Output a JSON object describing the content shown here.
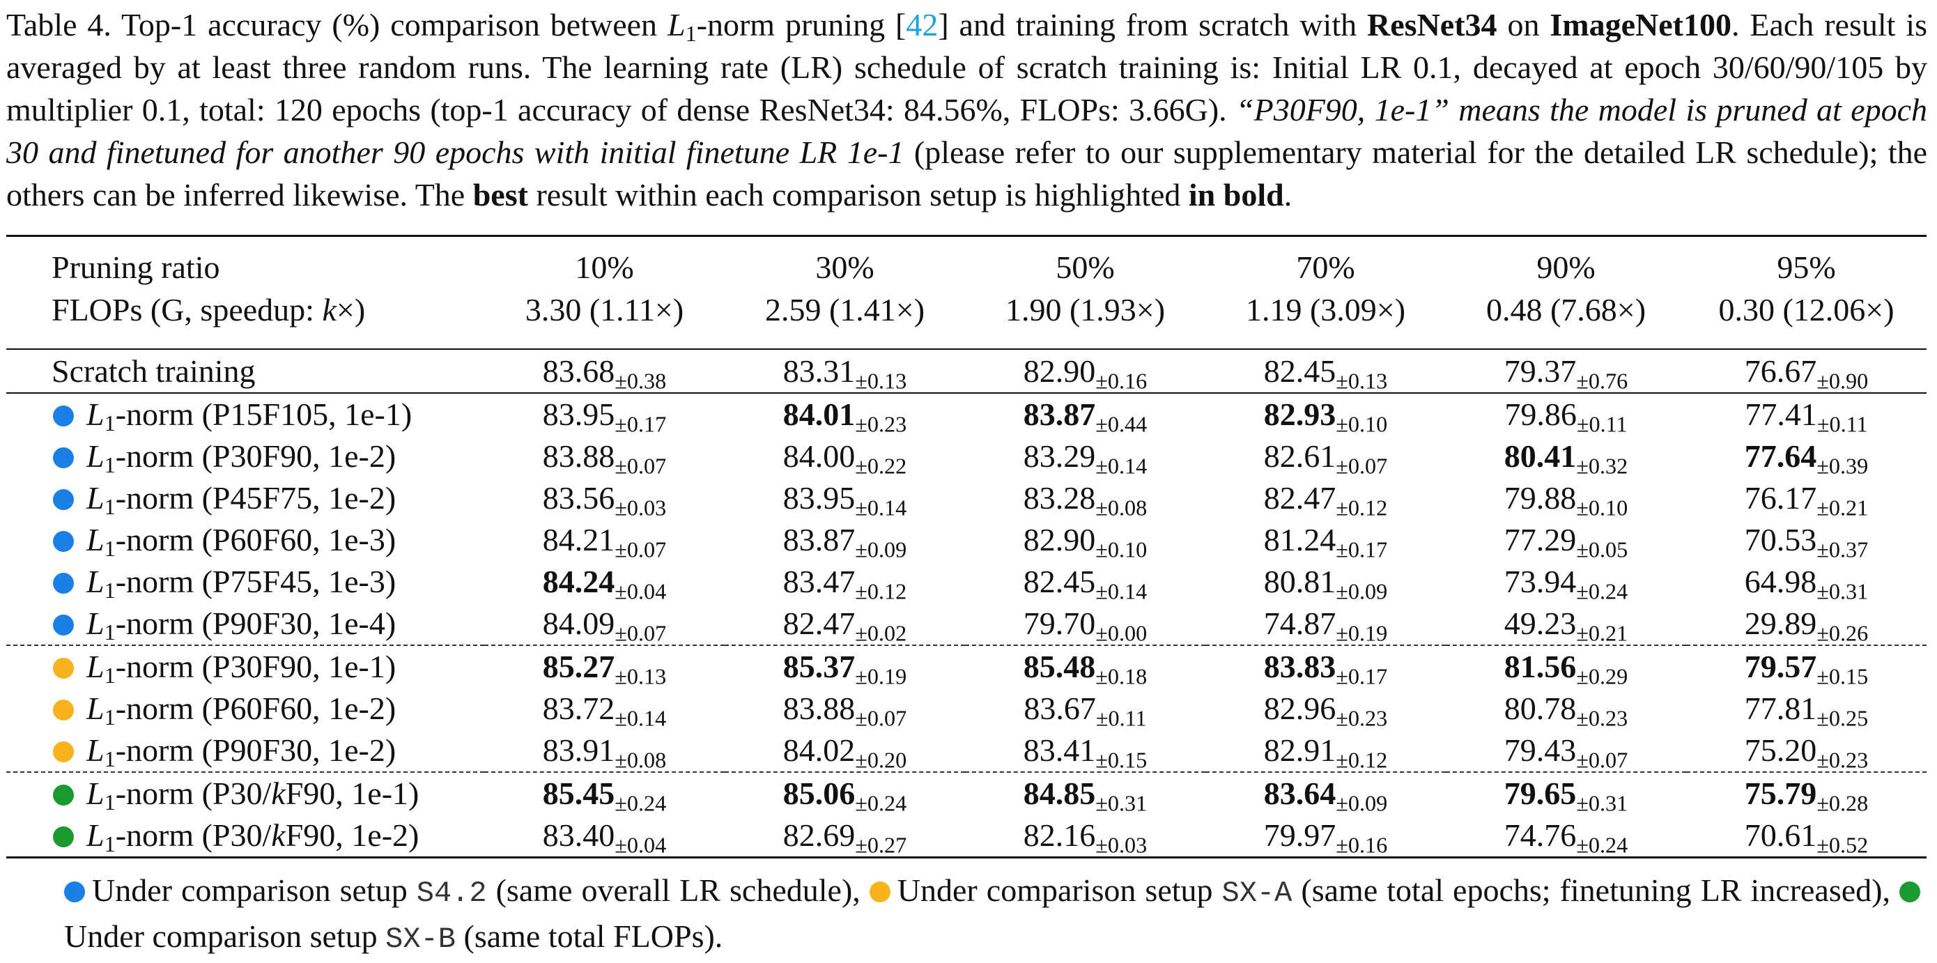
{
  "caption": {
    "parts": [
      "Table 4. Top-1 accuracy (%) comparison between ",
      "L",
      "1",
      "-norm pruning [",
      "42",
      "] and training from scratch with ",
      "ResNet34",
      " on ",
      "ImageNet100",
      ". Each result is averaged by at least three random runs. The learning rate (LR) schedule of scratch training is: Initial LR 0.1, decayed at epoch 30/60/90/105 by multiplier 0.1, total: 120 epochs (top-1 accuracy of dense ResNet34: 84.56%, FLOPs: 3.66G). ",
      "“P30F90, 1e-1” means the model is pruned at epoch 30 and finetuned for another 90 epochs with initial finetune LR 1e-1",
      " (please refer to our supplementary material for the detailed LR schedule); the others can be inferred likewise. The ",
      "best",
      " result within each comparison setup is highlighted ",
      "in bold",
      "."
    ]
  },
  "table": {
    "header": {
      "row_label": "Pruning ratio",
      "flops_label": [
        "FLOPs (G, speedup: ",
        "k",
        "×)"
      ],
      "ratios": [
        "10%",
        "30%",
        "50%",
        "70%",
        "90%",
        "95%"
      ],
      "flops": [
        "3.30 (1.11×)",
        "2.59 (1.41×)",
        "1.90 (1.93×)",
        "1.19 (3.09×)",
        "0.48 (7.68×)",
        "0.30 (12.06×)"
      ]
    },
    "rows": [
      {
        "text": [
          "Scratch training"
        ],
        "cells": [
          [
            "83.68",
            "±0.38",
            false
          ],
          [
            "83.31",
            "±0.13",
            false
          ],
          [
            "82.90",
            "±0.16",
            false
          ],
          [
            "82.45",
            "±0.13",
            false
          ],
          [
            "79.37",
            "±0.76",
            false
          ],
          [
            "76.67",
            "±0.90",
            false
          ]
        ]
      },
      {
        "setup": 0,
        "var": "L",
        "sub": "1",
        "text": [
          "-norm (P15F105, 1e-1)"
        ],
        "cells": [
          [
            "83.95",
            "±0.17",
            false
          ],
          [
            "84.01",
            "±0.23",
            true
          ],
          [
            "83.87",
            "±0.44",
            true
          ],
          [
            "82.93",
            "±0.10",
            true
          ],
          [
            "79.86",
            "±0.11",
            false
          ],
          [
            "77.41",
            "±0.11",
            false
          ]
        ]
      },
      {
        "setup": 0,
        "var": "L",
        "sub": "1",
        "text": [
          "-norm (P30F90, 1e-2)"
        ],
        "cells": [
          [
            "83.88",
            "±0.07",
            false
          ],
          [
            "84.00",
            "±0.22",
            false
          ],
          [
            "83.29",
            "±0.14",
            false
          ],
          [
            "82.61",
            "±0.07",
            false
          ],
          [
            "80.41",
            "±0.32",
            true
          ],
          [
            "77.64",
            "±0.39",
            true
          ]
        ]
      },
      {
        "setup": 0,
        "var": "L",
        "sub": "1",
        "text": [
          "-norm (P45F75, 1e-2)"
        ],
        "cells": [
          [
            "83.56",
            "±0.03",
            false
          ],
          [
            "83.95",
            "±0.14",
            false
          ],
          [
            "83.28",
            "±0.08",
            false
          ],
          [
            "82.47",
            "±0.12",
            false
          ],
          [
            "79.88",
            "±0.10",
            false
          ],
          [
            "76.17",
            "±0.21",
            false
          ]
        ]
      },
      {
        "setup": 0,
        "var": "L",
        "sub": "1",
        "text": [
          "-norm (P60F60, 1e-3)"
        ],
        "cells": [
          [
            "84.21",
            "±0.07",
            false
          ],
          [
            "83.87",
            "±0.09",
            false
          ],
          [
            "82.90",
            "±0.10",
            false
          ],
          [
            "81.24",
            "±0.17",
            false
          ],
          [
            "77.29",
            "±0.05",
            false
          ],
          [
            "70.53",
            "±0.37",
            false
          ]
        ]
      },
      {
        "setup": 0,
        "var": "L",
        "sub": "1",
        "text": [
          "-norm (P75F45, 1e-3)"
        ],
        "cells": [
          [
            "84.24",
            "±0.04",
            true
          ],
          [
            "83.47",
            "±0.12",
            false
          ],
          [
            "82.45",
            "±0.14",
            false
          ],
          [
            "80.81",
            "±0.09",
            false
          ],
          [
            "73.94",
            "±0.24",
            false
          ],
          [
            "64.98",
            "±0.31",
            false
          ]
        ]
      },
      {
        "setup": 0,
        "var": "L",
        "sub": "1",
        "text": [
          "-norm (P90F30, 1e-4)"
        ],
        "cells": [
          [
            "84.09",
            "±0.07",
            false
          ],
          [
            "82.47",
            "±0.02",
            false
          ],
          [
            "79.70",
            "±0.00",
            false
          ],
          [
            "74.87",
            "±0.19",
            false
          ],
          [
            "49.23",
            "±0.21",
            false
          ],
          [
            "29.89",
            "±0.26",
            false
          ]
        ]
      },
      {
        "setup": 1,
        "var": "L",
        "sub": "1",
        "text": [
          "-norm (P30F90, 1e-1)"
        ],
        "cells": [
          [
            "85.27",
            "±0.13",
            true
          ],
          [
            "85.37",
            "±0.19",
            true
          ],
          [
            "85.48",
            "±0.18",
            true
          ],
          [
            "83.83",
            "±0.17",
            true
          ],
          [
            "81.56",
            "±0.29",
            true
          ],
          [
            "79.57",
            "±0.15",
            true
          ]
        ]
      },
      {
        "setup": 1,
        "var": "L",
        "sub": "1",
        "text": [
          "-norm (P60F60, 1e-2)"
        ],
        "cells": [
          [
            "83.72",
            "±0.14",
            false
          ],
          [
            "83.88",
            "±0.07",
            false
          ],
          [
            "83.67",
            "±0.11",
            false
          ],
          [
            "82.96",
            "±0.23",
            false
          ],
          [
            "80.78",
            "±0.23",
            false
          ],
          [
            "77.81",
            "±0.25",
            false
          ]
        ]
      },
      {
        "setup": 1,
        "var": "L",
        "sub": "1",
        "text": [
          "-norm (P90F30, 1e-2)"
        ],
        "cells": [
          [
            "83.91",
            "±0.08",
            false
          ],
          [
            "84.02",
            "±0.20",
            false
          ],
          [
            "83.41",
            "±0.15",
            false
          ],
          [
            "82.91",
            "±0.12",
            false
          ],
          [
            "79.43",
            "±0.07",
            false
          ],
          [
            "75.20",
            "±0.23",
            false
          ]
        ]
      },
      {
        "setup": 2,
        "var": "L",
        "sub": "1",
        "text": [
          "-norm (P30/",
          "k",
          "F90, 1e-1)"
        ],
        "cells": [
          [
            "85.45",
            "±0.24",
            true
          ],
          [
            "85.06",
            "±0.24",
            true
          ],
          [
            "84.85",
            "±0.31",
            true
          ],
          [
            "83.64",
            "±0.09",
            true
          ],
          [
            "79.65",
            "±0.31",
            true
          ],
          [
            "75.79",
            "±0.28",
            true
          ]
        ]
      },
      {
        "setup": 2,
        "var": "L",
        "sub": "1",
        "text": [
          "-norm (P30/",
          "k",
          "F90, 1e-2)"
        ],
        "cells": [
          [
            "83.40",
            "±0.04",
            false
          ],
          [
            "82.69",
            "±0.27",
            false
          ],
          [
            "82.16",
            "±0.03",
            false
          ],
          [
            "79.97",
            "±0.16",
            false
          ],
          [
            "74.76",
            "±0.24",
            false
          ],
          [
            "70.61",
            "±0.52",
            false
          ]
        ]
      }
    ]
  },
  "footnote": [
    {
      "color": "#1a7fe6",
      "prefix": "Under comparison setup ",
      "code": "S4.2",
      "suffix": " (same overall LR schedule), "
    },
    {
      "color": "#f7b21c",
      "prefix": "Under comparison setup ",
      "code": "SX-A",
      "suffix": " (same total epochs; finetuning LR increased), "
    },
    {
      "color": "#1a9a30",
      "prefix": "Under comparison setup ",
      "code": "SX-B",
      "suffix": " (same total FLOPs)."
    }
  ]
}
